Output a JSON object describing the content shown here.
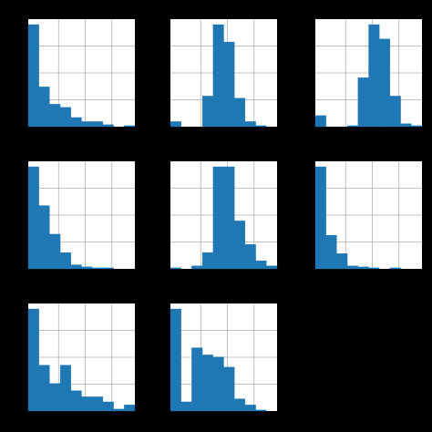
{
  "figure": {
    "background": "#000000",
    "panel_background": "#ffffff",
    "bar_color": "#1f77b4",
    "grid_color": "#b0b0b0"
  },
  "chart_data": [
    {
      "type": "bar",
      "title": "",
      "grid": true,
      "values": [
        100,
        39,
        22,
        19,
        9,
        5,
        5,
        2,
        0,
        1
      ]
    },
    {
      "type": "bar",
      "title": "",
      "grid": true,
      "values": [
        5,
        0,
        0,
        30,
        100,
        83,
        28,
        5,
        1,
        0
      ]
    },
    {
      "type": "bar",
      "title": "",
      "grid": true,
      "values": [
        11,
        0,
        0,
        1,
        48,
        100,
        86,
        30,
        3,
        1
      ]
    },
    {
      "type": "bar",
      "title": "",
      "grid": true,
      "values": [
        100,
        62,
        34,
        16,
        4,
        2,
        1,
        1,
        0,
        0
      ]
    },
    {
      "type": "bar",
      "title": "",
      "grid": true,
      "values": [
        1,
        0,
        3,
        16,
        100,
        100,
        47,
        24,
        8,
        3
      ]
    },
    {
      "type": "bar",
      "title": "",
      "grid": true,
      "values": [
        100,
        33,
        15,
        3,
        2,
        1,
        0,
        1,
        0,
        0
      ]
    },
    {
      "type": "bar",
      "title": "",
      "grid": true,
      "values": [
        100,
        45,
        27,
        45,
        20,
        14,
        14,
        9,
        2,
        6
      ]
    },
    {
      "type": "bar",
      "title": "",
      "grid": true,
      "values": [
        100,
        9,
        62,
        55,
        53,
        43,
        12,
        6,
        1,
        0
      ]
    }
  ]
}
